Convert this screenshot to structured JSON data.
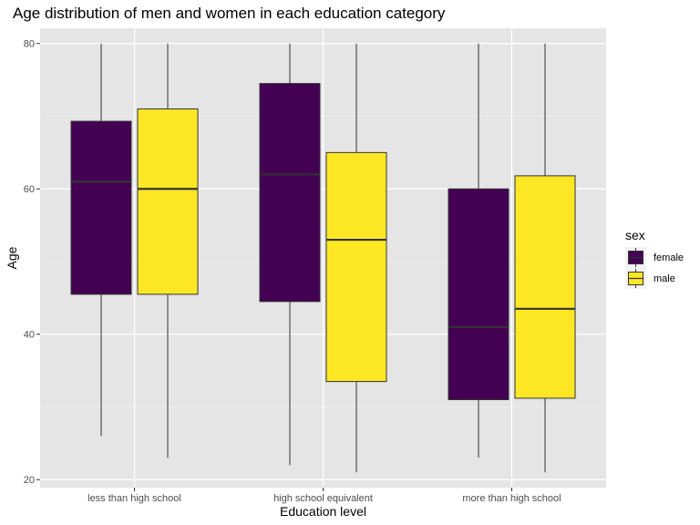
{
  "chart_data": {
    "type": "boxplot",
    "title": "Age distribution of men and women in each education category",
    "xlabel": "Education level",
    "ylabel": "Age",
    "categories": [
      "less than high school",
      "high school equivalent",
      "more than high school"
    ],
    "yticks": [
      20,
      40,
      60,
      80
    ],
    "ylim": [
      18.9,
      82.1
    ],
    "grid": true,
    "legend": {
      "title": "sex",
      "placement": "right"
    },
    "series": [
      {
        "name": "female",
        "color": "#440154",
        "boxes": [
          {
            "min": 26,
            "q1": 45.5,
            "median": 61,
            "q3": 69.3,
            "max": 80
          },
          {
            "min": 22,
            "q1": 44.5,
            "median": 62,
            "q3": 74.5,
            "max": 80
          },
          {
            "min": 23,
            "q1": 31,
            "median": 41,
            "q3": 60,
            "max": 80
          }
        ]
      },
      {
        "name": "male",
        "color": "#fde725",
        "boxes": [
          {
            "min": 23,
            "q1": 45.5,
            "median": 60,
            "q3": 71,
            "max": 80
          },
          {
            "min": 21,
            "q1": 33.5,
            "median": 53,
            "q3": 65,
            "max": 80
          },
          {
            "min": 21,
            "q1": 31.2,
            "median": 43.5,
            "q3": 61.8,
            "max": 80
          }
        ]
      }
    ]
  }
}
